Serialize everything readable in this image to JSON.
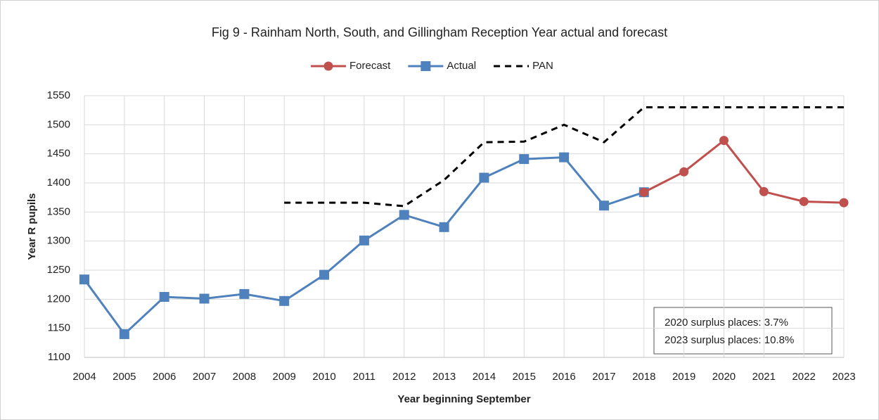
{
  "chart_data": {
    "type": "line",
    "title": "Fig 9 - Rainham North, South, and Gillingham Reception Year actual and forecast",
    "x_label": "Year beginning September",
    "y_label": "Year R pupils",
    "x": [
      2004,
      2005,
      2006,
      2007,
      2008,
      2009,
      2010,
      2011,
      2012,
      2013,
      2014,
      2015,
      2016,
      2017,
      2018,
      2019,
      2020,
      2021,
      2022,
      2023
    ],
    "xlim": [
      2004,
      2023
    ],
    "xticks": [
      2004,
      2005,
      2006,
      2007,
      2008,
      2009,
      2010,
      2011,
      2012,
      2013,
      2014,
      2015,
      2016,
      2017,
      2018,
      2019,
      2020,
      2021,
      2022,
      2023
    ],
    "ylim": [
      1100,
      1550
    ],
    "yticks": [
      1100,
      1150,
      1200,
      1250,
      1300,
      1350,
      1400,
      1450,
      1500,
      1550
    ],
    "grid": true,
    "legend": "top",
    "series": [
      {
        "name": "Forecast",
        "color": "#c0504d",
        "marker": "circle",
        "dash": false,
        "values": [
          null,
          null,
          null,
          null,
          null,
          null,
          null,
          null,
          null,
          null,
          null,
          null,
          null,
          null,
          1384,
          1419,
          1473,
          1385,
          1368,
          1366
        ]
      },
      {
        "name": "Actual",
        "color": "#4f81bd",
        "marker": "square",
        "dash": false,
        "values": [
          1234,
          1140,
          1204,
          1201,
          1209,
          1197,
          1242,
          1301,
          1345,
          1324,
          1409,
          1441,
          1444,
          1361,
          1384,
          null,
          null,
          null,
          null,
          null
        ]
      },
      {
        "name": "PAN",
        "color": "#000000",
        "marker": "none",
        "dash": true,
        "values": [
          null,
          null,
          null,
          null,
          null,
          1366,
          1366,
          1366,
          1360,
          1405,
          1470,
          1471,
          1500,
          1470,
          1530,
          1530,
          1530,
          1530,
          1530,
          1530
        ]
      }
    ],
    "annotations": [
      "2020 surplus places: 3.7%",
      "2023 surplus places: 10.8%"
    ]
  }
}
